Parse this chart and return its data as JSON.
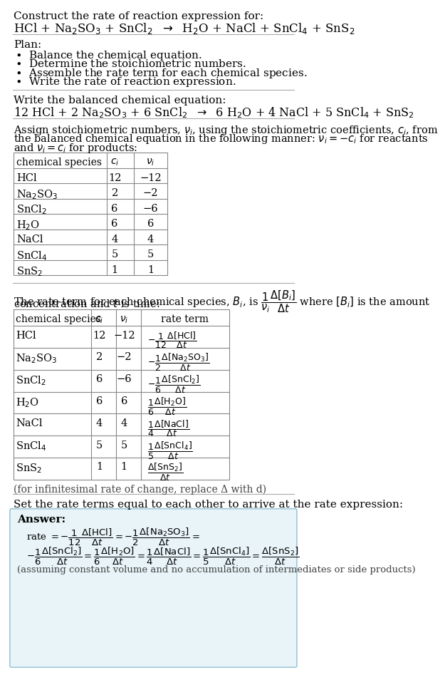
{
  "bg_color": "#ffffff",
  "answer_box_color": "#e8f4f8",
  "answer_box_border": "#a0c8d8",
  "text_color": "#000000",
  "title_line1": "Construct the rate of reaction expression for:",
  "title_line2_mathtext": "HCl + Na$_2$SO$_3$ + SnCl$_2$  $\\rightarrow$  H$_2$O + NaCl + SnCl$_4$ + SnS$_2$",
  "plan_header": "Plan:",
  "plan_items": [
    "$\\bullet$  Balance the chemical equation.",
    "$\\bullet$  Determine the stoichiometric numbers.",
    "$\\bullet$  Assemble the rate term for each chemical species.",
    "$\\bullet$  Write the rate of reaction expression."
  ],
  "balanced_header": "Write the balanced chemical equation:",
  "balanced_eq": "12 HCl + 2 Na$_2$SO$_3$ + 6 SnCl$_2$  $\\rightarrow$  6 H$_2$O + 4 NaCl + 5 SnCl$_4$ + SnS$_2$",
  "stoich_intro_lines": [
    "Assign stoichiometric numbers, $\\nu_i$, using the stoichiometric coefficients, $c_i$, from",
    "the balanced chemical equation in the following manner: $\\nu_i = -c_i$ for reactants",
    "and $\\nu_i = c_i$ for products:"
  ],
  "table1_headers": [
    "chemical species",
    "$c_i$",
    "$\\nu_i$"
  ],
  "table1_rows": [
    [
      "HCl",
      "12",
      "−12"
    ],
    [
      "Na$_2$SO$_3$",
      "2",
      "−2"
    ],
    [
      "SnCl$_2$",
      "6",
      "−6"
    ],
    [
      "H$_2$O",
      "6",
      "6"
    ],
    [
      "NaCl",
      "4",
      "4"
    ],
    [
      "SnCl$_4$",
      "5",
      "5"
    ],
    [
      "SnS$_2$",
      "1",
      "1"
    ]
  ],
  "rate_intro_lines": [
    "The rate term for each chemical species, $B_i$, is $\\dfrac{1}{\\nu_i}\\dfrac{\\Delta[B_i]}{\\Delta t}$ where $[B_i]$ is the amount",
    "concentration and $t$ is time:"
  ],
  "table2_headers": [
    "chemical species",
    "$c_i$",
    "$\\nu_i$",
    "rate term"
  ],
  "table2_rows": [
    [
      "HCl",
      "12",
      "−12",
      "$-\\dfrac{1}{12}\\dfrac{\\Delta[\\mathrm{HCl}]}{\\Delta t}$"
    ],
    [
      "Na$_2$SO$_3$",
      "2",
      "−2",
      "$-\\dfrac{1}{2}\\dfrac{\\Delta[\\mathrm{Na_2SO_3}]}{\\Delta t}$"
    ],
    [
      "SnCl$_2$",
      "6",
      "−6",
      "$-\\dfrac{1}{6}\\dfrac{\\Delta[\\mathrm{SnCl_2}]}{\\Delta t}$"
    ],
    [
      "H$_2$O",
      "6",
      "6",
      "$\\dfrac{1}{6}\\dfrac{\\Delta[\\mathrm{H_2O}]}{\\Delta t}$"
    ],
    [
      "NaCl",
      "4",
      "4",
      "$\\dfrac{1}{4}\\dfrac{\\Delta[\\mathrm{NaCl}]}{\\Delta t}$"
    ],
    [
      "SnCl$_4$",
      "5",
      "5",
      "$\\dfrac{1}{5}\\dfrac{\\Delta[\\mathrm{SnCl_4}]}{\\Delta t}$"
    ],
    [
      "SnS$_2$",
      "1",
      "1",
      "$\\dfrac{\\Delta[\\mathrm{SnS_2}]}{\\Delta t}$"
    ]
  ],
  "infinitesimal_note": "(for infinitesimal rate of change, replace Δ with d)",
  "rate_expr_header": "Set the rate terms equal to each other to arrive at the rate expression:",
  "answer_label": "Answer:",
  "answer_note": "(assuming constant volume and no accumulation of intermediates or side products)",
  "rate_line1": "rate $= -\\dfrac{1}{12}\\dfrac{\\Delta[\\mathrm{HCl}]}{\\Delta t} = -\\dfrac{1}{2}\\dfrac{\\Delta[\\mathrm{Na_2SO_3}]}{\\Delta t} =$",
  "rate_line2": "$-\\dfrac{1}{6}\\dfrac{\\Delta[\\mathrm{SnCl_2}]}{\\Delta t} = \\dfrac{1}{6}\\dfrac{\\Delta[\\mathrm{H_2O}]}{\\Delta t} = \\dfrac{1}{4}\\dfrac{\\Delta[\\mathrm{NaCl}]}{\\Delta t} = \\dfrac{1}{5}\\dfrac{\\Delta[\\mathrm{SnCl_4}]}{\\Delta t} = \\dfrac{\\Delta[\\mathrm{SnS_2}]}{\\Delta t}$"
}
